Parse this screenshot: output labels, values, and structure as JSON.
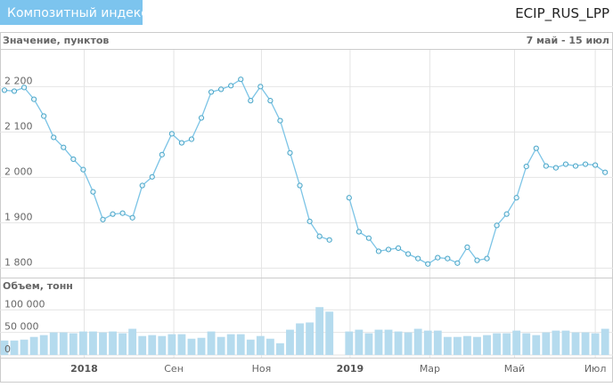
{
  "header": {
    "button": "Композитный индекс",
    "code": "ECIP_RUS_LPP"
  },
  "chart_data": [
    {
      "type": "line",
      "y_label": "Значение, пунктов",
      "range_label": "7 май - 15 июл",
      "color": "#7cc4e6",
      "grid": true,
      "xlim": [
        -0.45,
        61.8
      ],
      "ylim": [
        1783,
        2283
      ],
      "yticks": [
        {
          "value": 1800,
          "label": "1 800"
        },
        {
          "value": 1900,
          "label": "1 900"
        },
        {
          "value": 2000,
          "label": "2 000"
        },
        {
          "value": 2100,
          "label": "2 100"
        },
        {
          "value": 2200,
          "label": "2 200"
        }
      ],
      "values": [
        2192,
        2190,
        2198,
        2172,
        2135,
        2088,
        2066,
        2040,
        2017,
        1968,
        1907,
        1919,
        1921,
        1911,
        1982,
        2001,
        2050,
        2096,
        2076,
        2084,
        2131,
        2188,
        2194,
        2202,
        2216,
        2169,
        2200,
        2169,
        2125,
        2054,
        1982,
        1903,
        1870,
        1862,
        null,
        1955,
        1880,
        1866,
        1837,
        1841,
        1844,
        1831,
        1821,
        1809,
        1823,
        1821,
        1811,
        1846,
        1817,
        1821,
        1894,
        1919,
        1955,
        2024,
        2064,
        2025,
        2021,
        2029,
        2025,
        2029,
        2027,
        2011
      ]
    },
    {
      "type": "bar",
      "y_label": "Объем, тонн",
      "color": "#b5dbee",
      "grid": true,
      "xlim": [
        -0.45,
        61.8
      ],
      "ylim": [
        0,
        136000
      ],
      "yticks": [
        0,
        {
          "value": 50000,
          "label": "50 000"
        },
        {
          "value": 100000,
          "label": "100 000"
        }
      ],
      "xticks": [
        {
          "value": 8.1,
          "label": "2018"
        },
        {
          "value": 17.2,
          "label": "Сен"
        },
        {
          "value": 26.1,
          "label": "Ноя"
        },
        {
          "value": 35.1,
          "label": "2019"
        },
        {
          "value": 43.2,
          "label": "Мар"
        },
        {
          "value": 51.8,
          "label": "Май"
        },
        {
          "value": 60.0,
          "label": "Июл"
        }
      ],
      "values": [
        32000,
        32000,
        34000,
        40000,
        44000,
        50000,
        50000,
        48000,
        52000,
        52000,
        50000,
        52000,
        48000,
        58000,
        42000,
        44000,
        42000,
        46000,
        46000,
        36000,
        38000,
        52000,
        40000,
        46000,
        46000,
        34000,
        42000,
        36000,
        26000,
        56000,
        70000,
        72000,
        106000,
        96000,
        null,
        52000,
        56000,
        48000,
        56000,
        56000,
        52000,
        50000,
        58000,
        54000,
        54000,
        40000,
        40000,
        42000,
        40000,
        44000,
        48000,
        48000,
        54000,
        48000,
        44000,
        50000,
        54000,
        54000,
        50000,
        50000,
        48000,
        58000
      ]
    }
  ]
}
